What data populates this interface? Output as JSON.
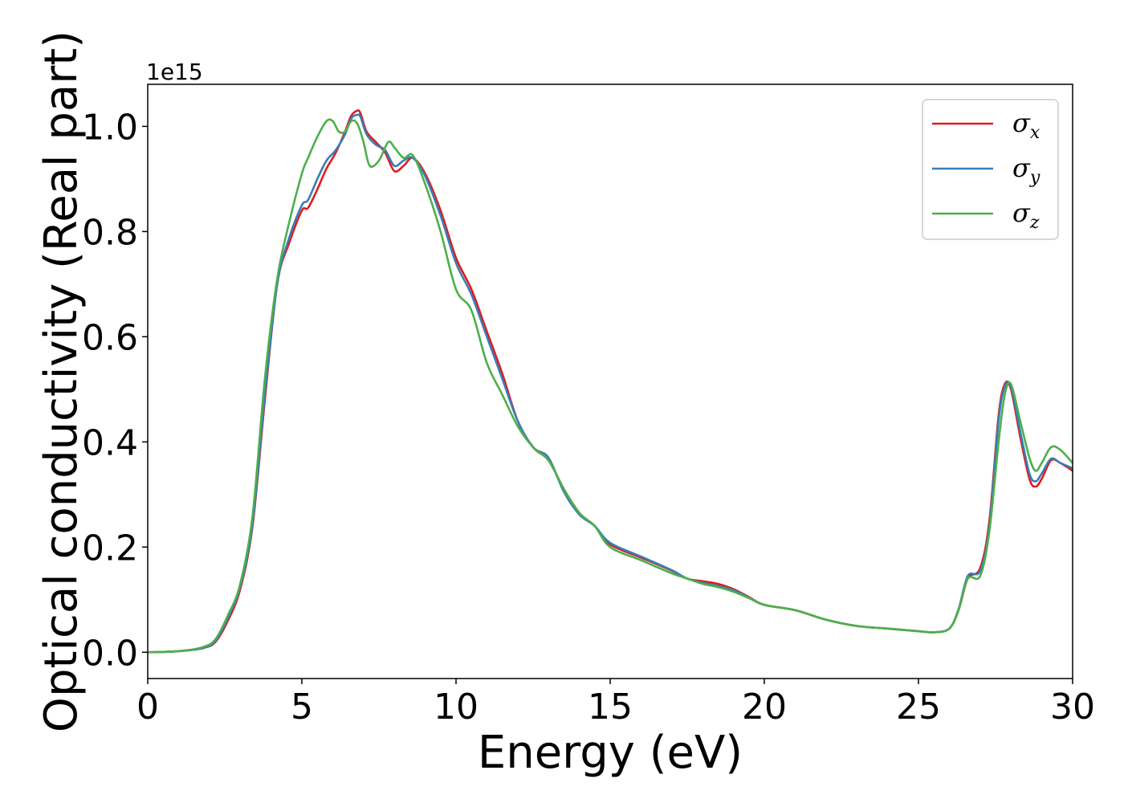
{
  "chart_data": {
    "type": "line",
    "title": "",
    "xlabel": "Energy (eV)",
    "ylabel": "Optical conductivity (Real part)",
    "y_offset_label": "1e15",
    "xlim": [
      0,
      30
    ],
    "ylim": [
      -0.05,
      1.08
    ],
    "xticks": [
      0,
      5,
      10,
      15,
      20,
      25,
      30
    ],
    "yticks": [
      0.0,
      0.2,
      0.4,
      0.6,
      0.8,
      1.0
    ],
    "xtick_labels": [
      "0",
      "5",
      "10",
      "15",
      "20",
      "25",
      "30"
    ],
    "ytick_labels": [
      "0.0",
      "0.2",
      "0.4",
      "0.6",
      "0.8",
      "1.0"
    ],
    "grid": false,
    "legend_position": "top-right",
    "series": [
      {
        "name": "σx",
        "symbol": "σ",
        "subscript": "x",
        "color": "#e41a1c",
        "x": [
          0,
          1,
          1.8,
          2.2,
          2.6,
          3.0,
          3.4,
          3.8,
          4.2,
          4.6,
          5.0,
          5.2,
          5.5,
          5.8,
          6.1,
          6.4,
          6.6,
          6.8,
          6.9,
          7.1,
          7.4,
          7.7,
          8.0,
          8.3,
          8.6,
          9.0,
          9.5,
          10.0,
          10.5,
          11.0,
          11.5,
          12.0,
          12.5,
          13.0,
          13.5,
          14.0,
          14.5,
          15.0,
          16.0,
          17.0,
          17.5,
          18.0,
          18.5,
          19.0,
          19.5,
          20.0,
          21.0,
          22.0,
          23.0,
          24.0,
          25.0,
          25.5,
          26.0,
          26.3,
          26.6,
          27.0,
          27.3,
          27.6,
          27.8,
          28.0,
          28.3,
          28.6,
          28.8,
          29.0,
          29.3,
          29.6,
          30.0
        ],
        "y": [
          0.0,
          0.002,
          0.008,
          0.02,
          0.06,
          0.12,
          0.24,
          0.48,
          0.7,
          0.78,
          0.84,
          0.845,
          0.88,
          0.92,
          0.95,
          0.99,
          1.02,
          1.03,
          1.025,
          0.99,
          0.97,
          0.95,
          0.915,
          0.925,
          0.94,
          0.91,
          0.84,
          0.75,
          0.69,
          0.61,
          0.53,
          0.44,
          0.39,
          0.365,
          0.31,
          0.265,
          0.24,
          0.205,
          0.18,
          0.155,
          0.14,
          0.135,
          0.13,
          0.12,
          0.105,
          0.09,
          0.08,
          0.062,
          0.05,
          0.045,
          0.04,
          0.038,
          0.045,
          0.08,
          0.14,
          0.16,
          0.25,
          0.45,
          0.51,
          0.5,
          0.41,
          0.33,
          0.315,
          0.33,
          0.365,
          0.36,
          0.345
        ]
      },
      {
        "name": "σy",
        "symbol": "σ",
        "subscript": "y",
        "color": "#377eb8",
        "x": [
          0,
          1,
          1.8,
          2.2,
          2.6,
          3.0,
          3.4,
          3.8,
          4.2,
          4.6,
          5.0,
          5.2,
          5.5,
          5.8,
          6.1,
          6.4,
          6.6,
          6.8,
          6.9,
          7.1,
          7.4,
          7.7,
          8.0,
          8.3,
          8.6,
          9.0,
          9.5,
          10.0,
          10.5,
          11.0,
          11.5,
          12.0,
          12.5,
          13.0,
          13.5,
          14.0,
          14.5,
          15.0,
          16.0,
          17.0,
          17.5,
          18.0,
          18.5,
          19.0,
          19.5,
          20.0,
          21.0,
          22.0,
          23.0,
          24.0,
          25.0,
          25.5,
          26.0,
          26.3,
          26.6,
          27.0,
          27.3,
          27.6,
          27.8,
          28.0,
          28.3,
          28.6,
          28.8,
          29.0,
          29.3,
          29.6,
          30.0
        ],
        "y": [
          0.0,
          0.002,
          0.008,
          0.022,
          0.065,
          0.125,
          0.245,
          0.49,
          0.7,
          0.79,
          0.85,
          0.86,
          0.9,
          0.935,
          0.955,
          0.985,
          1.015,
          1.022,
          1.018,
          0.985,
          0.965,
          0.955,
          0.925,
          0.935,
          0.94,
          0.905,
          0.83,
          0.74,
          0.68,
          0.6,
          0.52,
          0.44,
          0.39,
          0.37,
          0.305,
          0.262,
          0.24,
          0.208,
          0.182,
          0.156,
          0.14,
          0.132,
          0.126,
          0.118,
          0.104,
          0.09,
          0.08,
          0.062,
          0.05,
          0.045,
          0.04,
          0.038,
          0.045,
          0.082,
          0.145,
          0.155,
          0.24,
          0.44,
          0.505,
          0.505,
          0.42,
          0.34,
          0.325,
          0.34,
          0.368,
          0.36,
          0.35
        ]
      },
      {
        "name": "σz",
        "symbol": "σ",
        "subscript": "z",
        "color": "#4daf4a",
        "x": [
          0,
          1,
          1.8,
          2.2,
          2.6,
          3.0,
          3.4,
          3.8,
          4.2,
          4.6,
          5.0,
          5.2,
          5.5,
          5.8,
          6.0,
          6.2,
          6.4,
          6.6,
          6.8,
          7.0,
          7.2,
          7.5,
          7.8,
          8.0,
          8.3,
          8.6,
          9.0,
          9.5,
          10.0,
          10.5,
          11.0,
          11.5,
          12.0,
          12.5,
          13.0,
          13.5,
          14.0,
          14.5,
          15.0,
          16.0,
          17.0,
          17.5,
          18.0,
          18.5,
          19.0,
          19.5,
          20.0,
          21.0,
          22.0,
          23.0,
          24.0,
          25.0,
          25.5,
          26.0,
          26.3,
          26.6,
          27.0,
          27.3,
          27.6,
          27.8,
          28.0,
          28.3,
          28.6,
          28.8,
          29.0,
          29.3,
          29.6,
          30.0
        ],
        "y": [
          0.0,
          0.002,
          0.01,
          0.025,
          0.07,
          0.13,
          0.26,
          0.52,
          0.71,
          0.82,
          0.91,
          0.94,
          0.98,
          1.01,
          1.01,
          0.99,
          0.99,
          1.01,
          1.005,
          0.97,
          0.925,
          0.935,
          0.97,
          0.96,
          0.94,
          0.945,
          0.89,
          0.8,
          0.69,
          0.65,
          0.55,
          0.49,
          0.43,
          0.39,
          0.365,
          0.31,
          0.265,
          0.24,
          0.2,
          0.175,
          0.15,
          0.14,
          0.13,
          0.124,
          0.115,
          0.103,
          0.09,
          0.08,
          0.062,
          0.05,
          0.045,
          0.04,
          0.038,
          0.045,
          0.08,
          0.14,
          0.145,
          0.23,
          0.4,
          0.49,
          0.51,
          0.44,
          0.37,
          0.345,
          0.36,
          0.39,
          0.385,
          0.36
        ]
      }
    ]
  }
}
